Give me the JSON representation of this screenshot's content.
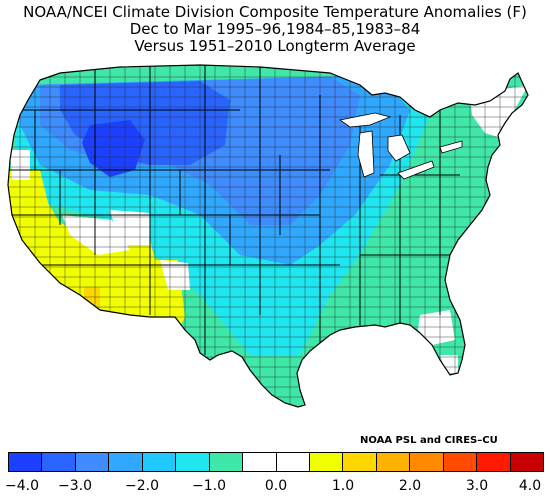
{
  "title": {
    "line1": "NOAA/NCEI Climate Division Composite Temperature Anomalies (F)",
    "line2": "Dec to Mar  1995–96,1984–85,1983–84",
    "line3": "Versus 1951–2010 Longterm Average"
  },
  "credit": "NOAA PSL and CIRES–CU",
  "colorbar": {
    "colors": [
      "#1c40ff",
      "#2a64ff",
      "#3f8cff",
      "#30a8ff",
      "#20c8ff",
      "#20e6f0",
      "#3fe8a8",
      "#ffffff",
      "#ffffff",
      "#f2ff00",
      "#ffd700",
      "#ffb300",
      "#ff8a00",
      "#ff4a00",
      "#ff1a00",
      "#c80000"
    ],
    "tick_labels": [
      "−4.0",
      "−3.0",
      "−2.0",
      "−1.0",
      "0.0",
      "1.0",
      "2.0",
      "3.0",
      "4.0"
    ],
    "tick_values": [
      -4.0,
      -3.0,
      -2.0,
      -1.0,
      0.0,
      1.0,
      2.0,
      3.0,
      4.0
    ],
    "range": [
      -4.0,
      4.0
    ]
  },
  "map": {
    "map_colors": {
      "land_default": "#3fe8a8",
      "outline": "#000000",
      "division_line": "#2a2a2a"
    }
  }
}
